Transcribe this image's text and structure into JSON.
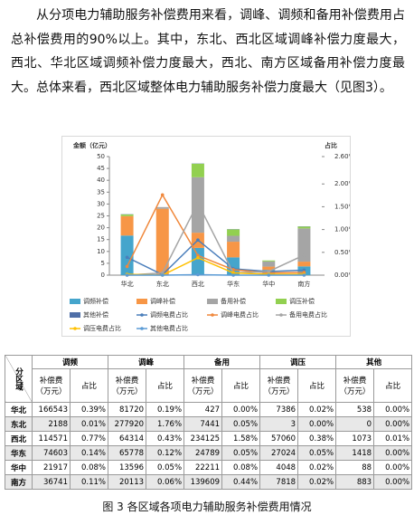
{
  "paragraph": "从分项电力辅助服务补偿费用来看，调峰、调频和备用补偿费用占总补偿费用的90%以上。其中，东北、西北区域调峰补偿力度最大，西北、华北区域调频补偿力度最大，西北、南方区域备用补偿力度最大。总体来看，西北区域整体电力辅助服务补偿力度最大（见图3）。",
  "chart_data": {
    "type": "bar",
    "y_label": "金额（亿元）",
    "y2_label": "占比",
    "categories": [
      "华北",
      "东北",
      "西北",
      "华东",
      "华中",
      "南方"
    ],
    "ylim": [
      0,
      50
    ],
    "yticks": [
      0,
      5,
      10,
      15,
      20,
      25,
      30,
      35,
      40,
      45,
      50
    ],
    "y2lim": [
      0,
      2.6
    ],
    "y2ticks": [
      {
        "value": 0,
        "label": "0.00%"
      },
      {
        "value": 0.5,
        "label": "0.50%"
      },
      {
        "value": 1,
        "label": "1.00%"
      },
      {
        "value": 1.5,
        "label": "1.50%"
      },
      {
        "value": 2,
        "label": "2.00%"
      },
      {
        "value": 2.6,
        "label": "2.60%"
      }
    ],
    "series": [
      {
        "name": "调频补偿",
        "color": "#45a5cc",
        "values": [
          16.7,
          0.2,
          11.5,
          7.5,
          2.2,
          3.7
        ]
      },
      {
        "name": "调峰补偿",
        "color": "#f79646",
        "values": [
          8.2,
          27.8,
          6.4,
          6.6,
          1.4,
          2.0
        ]
      },
      {
        "name": "备用补偿",
        "color": "#a5a5a5",
        "values": [
          0.0,
          0.7,
          23.4,
          2.5,
          2.2,
          14.0
        ]
      },
      {
        "name": "调压补偿",
        "color": "#92d050",
        "values": [
          0.7,
          0.0,
          5.7,
          2.7,
          0.4,
          0.8
        ]
      },
      {
        "name": "其他补偿",
        "color": "#4f6fa8",
        "values": [
          0.1,
          0.0,
          0.1,
          0.1,
          0.0,
          0.1
        ]
      },
      {
        "name": "调频电费占比",
        "color": "#4a7ebb",
        "type": "line",
        "axis": "y2",
        "values": [
          0.39,
          0.01,
          0.77,
          0.14,
          0.08,
          0.11
        ]
      },
      {
        "name": "调峰电费占比",
        "color": "#f0883c",
        "type": "line",
        "axis": "y2",
        "values": [
          0.19,
          1.76,
          0.43,
          0.12,
          0.05,
          0.06
        ]
      },
      {
        "name": "备用电费占比",
        "color": "#a5a5a5",
        "type": "line",
        "axis": "y2",
        "values": [
          0.0,
          0.05,
          1.58,
          0.05,
          0.08,
          0.44
        ]
      },
      {
        "name": "调压电费占比",
        "color": "#ffc000",
        "type": "line",
        "axis": "y2",
        "values": [
          0.02,
          0.0,
          0.38,
          0.05,
          0.02,
          0.02
        ]
      },
      {
        "name": "其他电费占比",
        "color": "#5b9bd5",
        "type": "line",
        "axis": "y2",
        "values": [
          0.0,
          0.0,
          0.01,
          0.0,
          0.0,
          0.0
        ]
      }
    ]
  },
  "table": {
    "corner": "分区域",
    "groups": [
      "调频",
      "调峰",
      "备用",
      "调压",
      "其他"
    ],
    "subheaders": [
      "补偿费\n（万元）",
      "占比",
      "补偿费\n（万元）",
      "占比",
      "补偿费\n（万元）",
      "占比",
      "补偿费\n（万元）",
      "占比",
      "补偿费\n（万元）",
      "占比"
    ],
    "rows": [
      [
        "华北",
        "166543",
        "0.39%",
        "81720",
        "0.19%",
        "427",
        "0.00%",
        "7386",
        "0.02%",
        "538",
        "0.00%"
      ],
      [
        "东北",
        "2188",
        "0.01%",
        "277920",
        "1.76%",
        "7441",
        "0.05%",
        "3",
        "0.00%",
        "0",
        "0.00%"
      ],
      [
        "西北",
        "114571",
        "0.77%",
        "64314",
        "0.43%",
        "234125",
        "1.58%",
        "57060",
        "0.38%",
        "1073",
        "0.01%"
      ],
      [
        "华东",
        "74603",
        "0.14%",
        "65778",
        "0.12%",
        "24789",
        "0.05%",
        "27024",
        "0.05%",
        "1418",
        "0.00%"
      ],
      [
        "华中",
        "21917",
        "0.08%",
        "13596",
        "0.05%",
        "22211",
        "0.08%",
        "4048",
        "0.02%",
        "88",
        "0.00%"
      ],
      [
        "南方",
        "36741",
        "0.11%",
        "20113",
        "0.06%",
        "139609",
        "0.44%",
        "7818",
        "0.02%",
        "883",
        "0.00%"
      ]
    ]
  },
  "caption": "图 3   各区域各项电力辅助服务补偿费用情况"
}
